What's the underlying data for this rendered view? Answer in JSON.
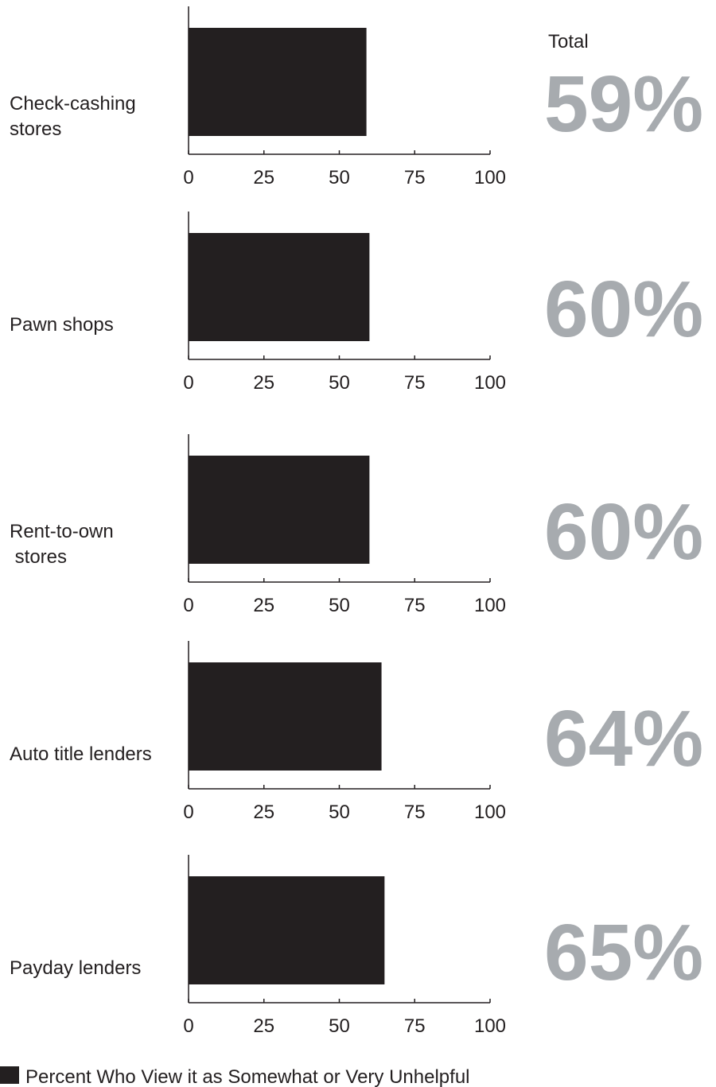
{
  "total_header": "Total",
  "legend": {
    "label": "Percent Who View it as Somewhat or Very Unhelpful",
    "color": "#231f20"
  },
  "colors": {
    "bar": "#231f20",
    "total_value": "#a7abaf",
    "axis": "#231f20"
  },
  "chart_data": {
    "type": "bar",
    "orientation": "horizontal",
    "xlim": [
      0,
      100
    ],
    "x_ticks": [
      "0",
      "25",
      "50",
      "75",
      "100"
    ],
    "legend_position": "bottom-left",
    "grid": false,
    "series": [
      {
        "name": "Percent Who View it as Somewhat or Very Unhelpful",
        "values": [
          59,
          60,
          60,
          64,
          65
        ]
      }
    ],
    "panels": [
      {
        "category": [
          "Check-cashing",
          "stores"
        ],
        "value": 59,
        "total_label": "59%"
      },
      {
        "category": [
          "Pawn shops"
        ],
        "value": 60,
        "total_label": "60%"
      },
      {
        "category": [
          "Rent-to-own",
          " stores"
        ],
        "value": 60,
        "total_label": "60%"
      },
      {
        "category": [
          "Auto title lenders"
        ],
        "value": 64,
        "total_label": "64%"
      },
      {
        "category": [
          "Payday lenders"
        ],
        "value": 65,
        "total_label": "65%"
      }
    ]
  }
}
